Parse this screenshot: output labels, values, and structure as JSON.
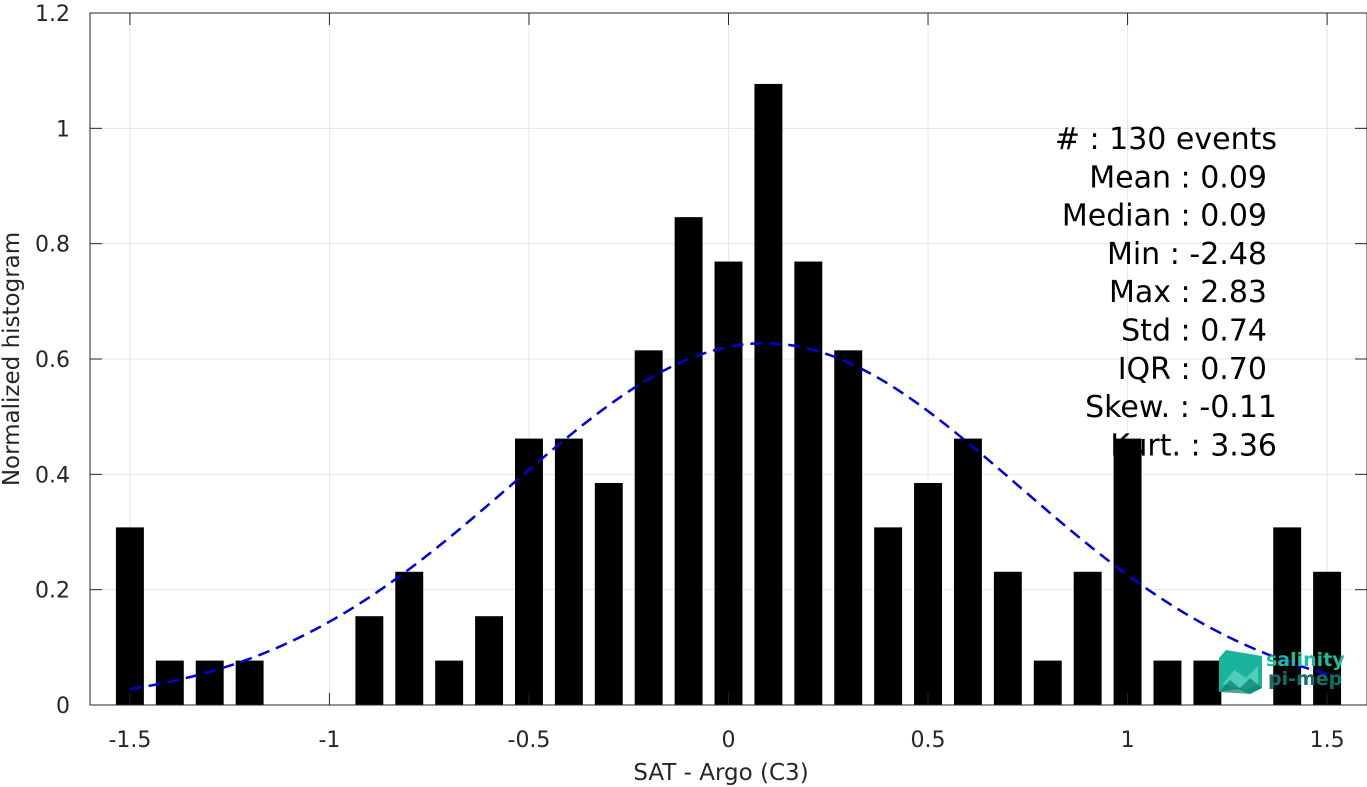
{
  "chart_data": {
    "type": "bar",
    "xlabel": "SAT - Argo (C3)",
    "ylabel": "Normalized histogram",
    "xlim": [
      -1.6,
      1.6
    ],
    "ylim": [
      0,
      1.2
    ],
    "xticks": [
      -1.5,
      -1,
      -0.5,
      0,
      0.5,
      1,
      1.5
    ],
    "xtick_labels": [
      "-1.5",
      "-1",
      "-0.5",
      "0",
      "0.5",
      "1",
      "1.5"
    ],
    "yticks": [
      0,
      0.2,
      0.4,
      0.6,
      0.8,
      1,
      1.2
    ],
    "ytick_labels": [
      "0",
      "0.2",
      "0.4",
      "0.6",
      "0.8",
      "1",
      "1.2"
    ],
    "grid": true,
    "bar_width": 0.07,
    "x": [
      -1.5,
      -1.4,
      -1.3,
      -1.2,
      -1.1,
      -1.0,
      -0.9,
      -0.8,
      -0.7,
      -0.6,
      -0.5,
      -0.4,
      -0.3,
      -0.2,
      -0.1,
      0.0,
      0.1,
      0.2,
      0.3,
      0.4,
      0.5,
      0.6,
      0.7,
      0.8,
      0.9,
      1.0,
      1.1,
      1.2,
      1.3,
      1.4,
      1.5
    ],
    "values": [
      0.308,
      0.077,
      0.077,
      0.077,
      0,
      0,
      0.154,
      0.231,
      0.077,
      0.154,
      0.462,
      0.462,
      0.385,
      0.615,
      0.846,
      0.769,
      1.077,
      0.769,
      0.615,
      0.308,
      0.385,
      0.462,
      0.231,
      0.077,
      0.231,
      0.462,
      0.077,
      0.077,
      0,
      0.308,
      0.231
    ],
    "bar_color": "#000000",
    "fit_curve": {
      "style": "dashed",
      "color": "#0000dd",
      "mean": 0.09,
      "std": 0.636,
      "x_range": [
        -1.5,
        1.5
      ]
    },
    "stats_lines": [
      "#  : 130 events",
      "Mean : 0.09",
      "Median : 0.09",
      "Min : -2.48",
      "Max : 2.83",
      "Std : 0.74",
      "IQR : 0.70",
      "Skew. : -0.11",
      "Kurt. : 3.36"
    ]
  },
  "logo": {
    "line1": "salinity",
    "line2": "pi-mep",
    "color1": "#1abc9c",
    "color2": "#0f6f66"
  }
}
